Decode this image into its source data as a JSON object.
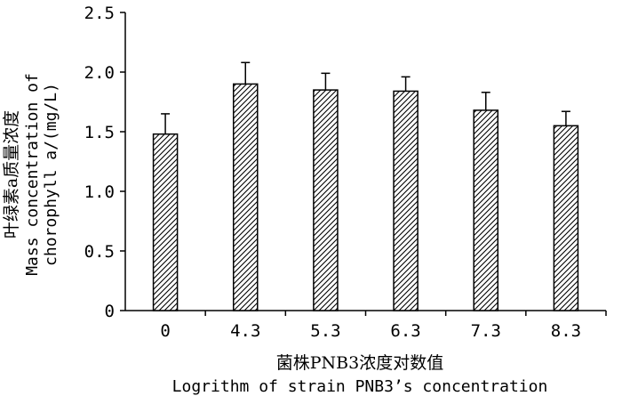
{
  "chart_data": {
    "type": "bar",
    "categories": [
      "0",
      "4.3",
      "5.3",
      "6.3",
      "7.3",
      "8.3"
    ],
    "series": [
      {
        "values": [
          1.48,
          1.9,
          1.85,
          1.84,
          1.68,
          1.55
        ],
        "errors": [
          0.17,
          0.18,
          0.14,
          0.12,
          0.15,
          0.12
        ]
      }
    ],
    "xlabel_cn": "菌株PNB3浓度对数值",
    "xlabel_en": "Logrithm of strain PNB3’s concentration",
    "ylabel_cn": "叶绿素a质量浓度",
    "ylabel_en_line1": "Mass concentration of",
    "ylabel_en_line2": "chorophyll a/(mg/L)",
    "ylim": [
      0,
      2.5
    ],
    "yticks": [
      "0",
      "0.5",
      "1.0",
      "1.5",
      "2.0",
      "2.5"
    ],
    "ytick_values": [
      0,
      0.5,
      1.0,
      1.5,
      2.0,
      2.5
    ],
    "bar_fill": "diagonal-hatch",
    "grid": false,
    "legend": "none"
  }
}
